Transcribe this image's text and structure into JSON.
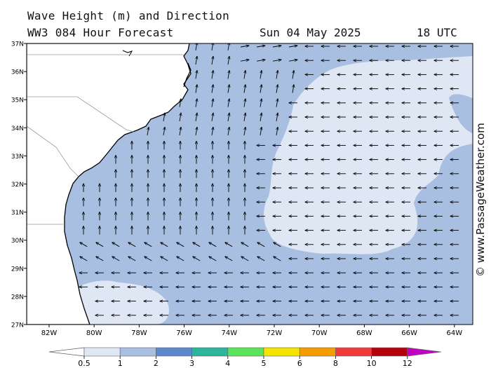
{
  "header": {
    "title_line1": "Wave Height (m) and Direction",
    "title_line2": "WW3 084 Hour Forecast",
    "date": "Sun 04 May 2025",
    "time": "18 UTC"
  },
  "copyright": "© www.PassageWeather.com",
  "map": {
    "lat_labels": [
      "37N",
      "36N",
      "35N",
      "34N",
      "33N",
      "32N",
      "31N",
      "30N",
      "29N",
      "28N",
      "27N"
    ],
    "lon_labels": [
      "82W",
      "80W",
      "78W",
      "76W",
      "74W",
      "72W",
      "70W",
      "68W",
      "66W",
      "64W"
    ],
    "colors": {
      "land": "#ffffff",
      "sea_1_to_2": "#a8bfe2",
      "sea_0_5_to_1": "#dfe6f4",
      "coast": "#000000",
      "border": "#9a9a9a",
      "arrow": "#000000"
    }
  },
  "legend": {
    "labels": [
      "0.5",
      "1",
      "2",
      "3",
      "4",
      "5",
      "6",
      "8",
      "10",
      "12"
    ],
    "colors": [
      "#dfe6f4",
      "#a8bfe2",
      "#5d88cc",
      "#2bb59a",
      "#5ce35a",
      "#f4e400",
      "#f59d00",
      "#ee3a3a",
      "#b5000d",
      "#c400c4"
    ]
  }
}
